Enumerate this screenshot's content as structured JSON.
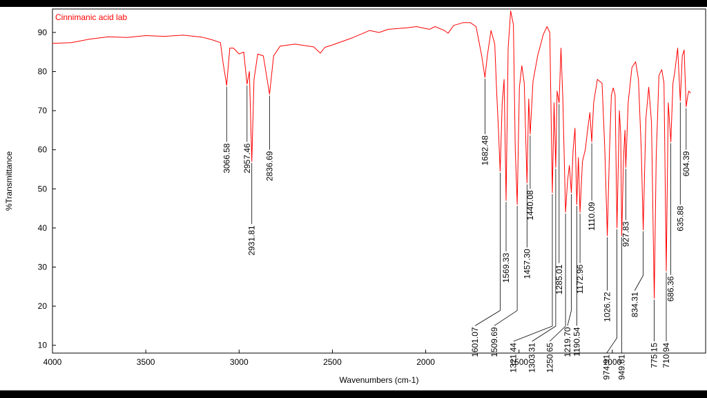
{
  "chart_data": {
    "type": "line",
    "title": "Cinnimanic acid lab",
    "xlabel": "Wavenumbers (cm-1)",
    "ylabel": "%Transmittance",
    "xlim": [
      4000,
      500
    ],
    "ylim": [
      8,
      96
    ],
    "x_reversed": true,
    "grid": false,
    "x_ticks": [
      4000,
      3500,
      3000,
      2500,
      2000,
      1500,
      1000
    ],
    "y_ticks": [
      10,
      20,
      30,
      40,
      50,
      60,
      70,
      80,
      90
    ],
    "series": [
      {
        "color": "#ff0000",
        "points": [
          [
            4000,
            87.2
          ],
          [
            3900,
            87.4
          ],
          [
            3800,
            88.3
          ],
          [
            3700,
            88.9
          ],
          [
            3600,
            88.7
          ],
          [
            3500,
            89.2
          ],
          [
            3400,
            89.0
          ],
          [
            3300,
            89.3
          ],
          [
            3200,
            88.8
          ],
          [
            3150,
            88.2
          ],
          [
            3100,
            87.4
          ],
          [
            3085,
            82.0
          ],
          [
            3066.58,
            76.5
          ],
          [
            3050,
            86.0
          ],
          [
            3030,
            86.0
          ],
          [
            3000,
            84.5
          ],
          [
            2975,
            85.0
          ],
          [
            2957.46,
            76.8
          ],
          [
            2945,
            80.0
          ],
          [
            2931.81,
            57.0
          ],
          [
            2920,
            78.0
          ],
          [
            2900,
            84.5
          ],
          [
            2870,
            84.0
          ],
          [
            2836.69,
            74.2
          ],
          [
            2815,
            84.0
          ],
          [
            2780,
            86.5
          ],
          [
            2700,
            87.0
          ],
          [
            2600,
            86.3
          ],
          [
            2565,
            84.7
          ],
          [
            2540,
            86.2
          ],
          [
            2500,
            86.8
          ],
          [
            2400,
            88.5
          ],
          [
            2300,
            90.5
          ],
          [
            2250,
            90.0
          ],
          [
            2200,
            90.8
          ],
          [
            2100,
            91.2
          ],
          [
            2050,
            91.5
          ],
          [
            1980,
            90.8
          ],
          [
            1950,
            91.5
          ],
          [
            1900,
            90.5
          ],
          [
            1880,
            89.8
          ],
          [
            1850,
            91.8
          ],
          [
            1800,
            92.5
          ],
          [
            1760,
            92.5
          ],
          [
            1730,
            91.5
          ],
          [
            1700,
            84.0
          ],
          [
            1682.48,
            78.5
          ],
          [
            1670,
            84.0
          ],
          [
            1650,
            90.5
          ],
          [
            1630,
            87.0
          ],
          [
            1620,
            75.0
          ],
          [
            1610,
            65.0
          ],
          [
            1601.07,
            54.5
          ],
          [
            1590,
            72.0
          ],
          [
            1580,
            78.0
          ],
          [
            1569.33,
            47.0
          ],
          [
            1558,
            86.0
          ],
          [
            1545,
            95.5
          ],
          [
            1530,
            92.0
          ],
          [
            1520,
            60.0
          ],
          [
            1509.69,
            46.0
          ],
          [
            1498,
            76.0
          ],
          [
            1485,
            81.5
          ],
          [
            1472,
            77.0
          ],
          [
            1457.3,
            51.5
          ],
          [
            1448,
            73.0
          ],
          [
            1440.08,
            64.0
          ],
          [
            1425,
            77.5
          ],
          [
            1400,
            84.0
          ],
          [
            1370,
            89.5
          ],
          [
            1350,
            91.5
          ],
          [
            1335,
            90.0
          ],
          [
            1321.44,
            49.0
          ],
          [
            1312,
            72.0
          ],
          [
            1303.31,
            55.5
          ],
          [
            1296,
            75.0
          ],
          [
            1285.01,
            72.0
          ],
          [
            1275,
            86.0
          ],
          [
            1265,
            73.0
          ],
          [
            1250.65,
            44.0
          ],
          [
            1240,
            52.0
          ],
          [
            1230,
            56.0
          ],
          [
            1219.7,
            49.0
          ],
          [
            1210,
            60.0
          ],
          [
            1200,
            65.5
          ],
          [
            1190.54,
            46.0
          ],
          [
            1182,
            58.0
          ],
          [
            1172.96,
            44.0
          ],
          [
            1160,
            57.0
          ],
          [
            1145,
            60.0
          ],
          [
            1130,
            66.0
          ],
          [
            1120,
            69.5
          ],
          [
            1110.09,
            62.0
          ],
          [
            1100,
            72.0
          ],
          [
            1080,
            78.0
          ],
          [
            1055,
            77.0
          ],
          [
            1040,
            60.0
          ],
          [
            1026.72,
            38.0
          ],
          [
            1015,
            60.0
          ],
          [
            1005,
            74.0
          ],
          [
            995,
            75.8
          ],
          [
            985,
            74.0
          ],
          [
            974.91,
            40.0
          ],
          [
            962,
            70.0
          ],
          [
            955,
            64.0
          ],
          [
            949.61,
            38.0
          ],
          [
            940,
            58.0
          ],
          [
            932,
            65.0
          ],
          [
            927.83,
            55.5
          ],
          [
            915,
            72.0
          ],
          [
            895,
            81.0
          ],
          [
            875,
            82.5
          ],
          [
            860,
            78.0
          ],
          [
            845,
            60.0
          ],
          [
            834.31,
            39.5
          ],
          [
            820,
            68.0
          ],
          [
            805,
            76.0
          ],
          [
            790,
            67.0
          ],
          [
            775.15,
            22.0
          ],
          [
            765,
            58.0
          ],
          [
            750,
            79.0
          ],
          [
            735,
            80.5
          ],
          [
            723,
            77.0
          ],
          [
            710.94,
            29.0
          ],
          [
            700,
            72.0
          ],
          [
            686.36,
            62.0
          ],
          [
            675,
            77.0
          ],
          [
            665,
            80.0
          ],
          [
            650,
            86.0
          ],
          [
            635.88,
            72.5
          ],
          [
            625,
            84.0
          ],
          [
            615,
            85.5
          ],
          [
            604.39,
            71.0
          ],
          [
            595,
            74.0
          ],
          [
            590,
            75.0
          ],
          [
            580,
            74.5
          ]
        ]
      }
    ],
    "peak_labels": [
      {
        "text": "3066.58",
        "x": 3066.58,
        "tip": 76.5,
        "lab": 62
      },
      {
        "text": "2957.46",
        "x": 2957.46,
        "tip": 76.8,
        "lab": 62
      },
      {
        "text": "2931.81",
        "x": 2931.81,
        "tip": 57.0,
        "lab": 41
      },
      {
        "text": "2836.69",
        "x": 2836.69,
        "tip": 74.2,
        "lab": 60
      },
      {
        "text": "1682.48",
        "x": 1682.48,
        "tip": 78.5,
        "lab": 64
      },
      {
        "text": "1601.07",
        "x": 1601.07,
        "tip": 54.5,
        "lab": 15,
        "lx": 1735
      },
      {
        "text": "1569.33",
        "x": 1569.33,
        "tip": 47.0,
        "lab": 34
      },
      {
        "text": "1509.69",
        "x": 1509.69,
        "tip": 46.0,
        "lab": 15,
        "lx": 1633
      },
      {
        "text": "1457.30",
        "x": 1457.3,
        "tip": 51.5,
        "lab": 35
      },
      {
        "text": "1440.08",
        "x": 1440.08,
        "tip": 64.0,
        "lab": 50
      },
      {
        "text": "1321.44",
        "x": 1321.44,
        "tip": 49.0,
        "lab": 11,
        "lx": 1530
      },
      {
        "text": "1303.31",
        "x": 1303.31,
        "tip": 55.5,
        "lab": 11,
        "lx": 1430
      },
      {
        "text": "1285.01",
        "x": 1285.01,
        "tip": 72.0,
        "lab": 31
      },
      {
        "text": "1250.65",
        "x": 1250.65,
        "tip": 44.0,
        "lab": 11,
        "lx": 1335
      },
      {
        "text": "1219.70",
        "x": 1219.7,
        "tip": 49.0,
        "lab": 15,
        "lx": 1240
      },
      {
        "text": "1190.54",
        "x": 1190.54,
        "tip": 46.0,
        "lab": 15
      },
      {
        "text": "1172.96",
        "x": 1172.96,
        "tip": 44.0,
        "lab": 31
      },
      {
        "text": "1110.09",
        "x": 1110.09,
        "tip": 62.0,
        "lab": 47
      },
      {
        "text": "1026.72",
        "x": 1026.72,
        "tip": 38.0,
        "lab": 24
      },
      {
        "text": "974.91",
        "x": 974.91,
        "tip": 40.0,
        "lab": 8,
        "lx": 1030
      },
      {
        "text": "949.61",
        "x": 949.61,
        "tip": 38.0,
        "lab": 8
      },
      {
        "text": "927.83",
        "x": 927.83,
        "tip": 55.5,
        "lab": 42
      },
      {
        "text": "834.31",
        "x": 834.31,
        "tip": 39.5,
        "lab": 24,
        "lx": 880
      },
      {
        "text": "775.15",
        "x": 775.15,
        "tip": 22.0,
        "lab": 11
      },
      {
        "text": "710.94",
        "x": 710.94,
        "tip": 29.0,
        "lab": 11
      },
      {
        "text": "686.36",
        "x": 686.36,
        "tip": 62.0,
        "lab": 28
      },
      {
        "text": "635.88",
        "x": 635.88,
        "tip": 72.5,
        "lab": 46
      },
      {
        "text": "604.39",
        "x": 604.39,
        "tip": 71.0,
        "lab": 60
      }
    ]
  }
}
